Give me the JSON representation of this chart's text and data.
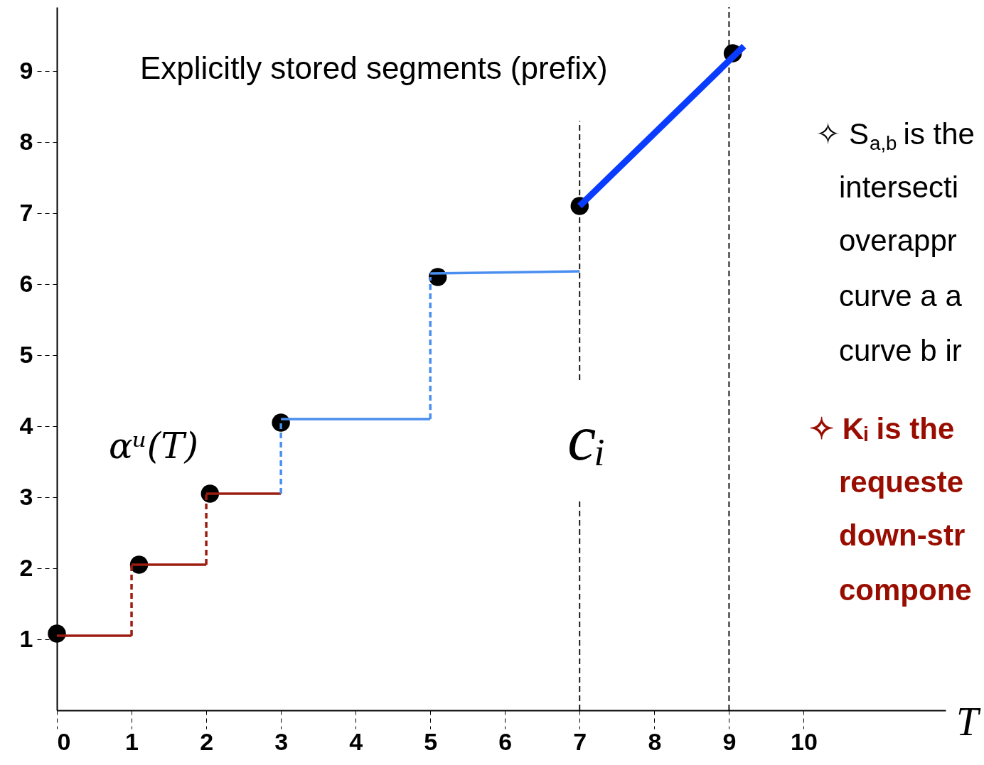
{
  "chart_data": {
    "type": "line",
    "xlabel": "T",
    "xlim": [
      0,
      11.9
    ],
    "ylim": [
      0,
      9.9
    ],
    "xticks": [
      0,
      1,
      2,
      3,
      4,
      5,
      6,
      7,
      8,
      9,
      10
    ],
    "yticks": [
      1,
      2,
      3,
      4,
      5,
      6,
      7,
      8,
      9
    ],
    "grid": false,
    "series": [
      {
        "type": "scatter",
        "marker": "circle",
        "color": "#000000",
        "x": [
          0,
          1.1,
          2.05,
          3,
          5.1,
          7,
          9.05
        ],
        "values": [
          1.08,
          2.05,
          3.05,
          4.05,
          6.1,
          7.1,
          9.25
        ]
      },
      {
        "line_style": "solid",
        "color": "#9c1c10",
        "x": [
          0,
          1
        ],
        "values": [
          1.05,
          1.05
        ]
      },
      {
        "line_style": "dashed",
        "color": "#9c1c10",
        "x": [
          1,
          1
        ],
        "values": [
          1.05,
          2.05
        ]
      },
      {
        "line_style": "solid",
        "color": "#9c1c10",
        "x": [
          1,
          2
        ],
        "values": [
          2.05,
          2.05
        ]
      },
      {
        "line_style": "dashed",
        "color": "#9c1c10",
        "x": [
          2,
          2
        ],
        "values": [
          2.05,
          3.05
        ]
      },
      {
        "line_style": "solid",
        "color": "#9c1c10",
        "x": [
          2,
          3
        ],
        "values": [
          3.05,
          3.05
        ]
      },
      {
        "line_style": "dashed",
        "color": "#4a8ef0",
        "x": [
          3,
          3
        ],
        "values": [
          3.05,
          4.05
        ]
      },
      {
        "line_style": "solid",
        "color": "#4a8ef0",
        "x": [
          3,
          5
        ],
        "values": [
          4.1,
          4.1
        ]
      },
      {
        "line_style": "dashed",
        "color": "#4a8ef0",
        "x": [
          5,
          5
        ],
        "values": [
          4.1,
          6.1
        ]
      },
      {
        "line_style": "solid",
        "color": "#4a8ef0",
        "x": [
          5,
          7
        ],
        "values": [
          6.15,
          6.18
        ]
      },
      {
        "line_style": "solid",
        "color": "#0a3cff",
        "x": [
          7,
          9.2
        ],
        "values": [
          7.1,
          9.35
        ]
      }
    ],
    "ref_lines": [
      {
        "axis": "x",
        "value": 7,
        "label": "cᵢ",
        "line_style": "dashed",
        "color": "#000000"
      },
      {
        "axis": "x",
        "value": 9,
        "line_style": "dashed",
        "color": "#000000"
      }
    ],
    "annotations": [
      "Explicitly stored segments (prefix)",
      "αᵘ(T)",
      "✧ S$_{a,b}$ is the",
      "intersecti",
      "overappr",
      "curve a a",
      "curve b ir",
      "✧ Kᵢ is the",
      "requeste",
      "down-str",
      "compone"
    ]
  }
}
